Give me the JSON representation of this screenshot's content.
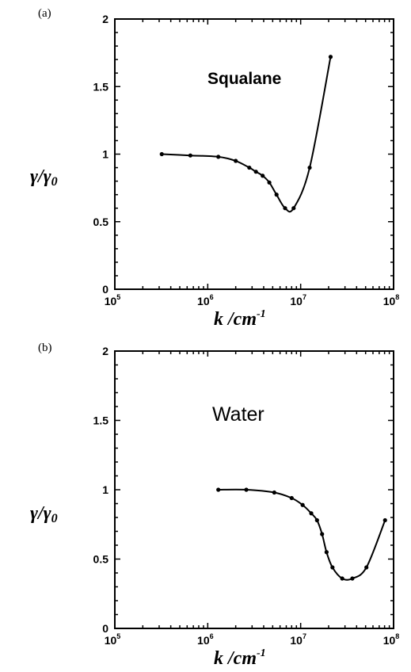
{
  "chart_data": [
    {
      "type": "line",
      "panel_label": "(a)",
      "title": "Squalane",
      "xlabel": "k /cm",
      "xlabel_exponent": "-1",
      "ylabel": "γ/γ",
      "ylabel_subscript": "0",
      "xscale": "log",
      "xlim": [
        100000,
        100000000
      ],
      "ylim": [
        0,
        2
      ],
      "yticks": [
        "0",
        "0.5",
        "1",
        "1.5",
        "2"
      ],
      "xticks": [
        {
          "base": "10",
          "exp": "5"
        },
        {
          "base": "10",
          "exp": "6"
        },
        {
          "base": "10",
          "exp": "7"
        },
        {
          "base": "10",
          "exp": "8"
        }
      ],
      "grid": false,
      "series": [
        {
          "x": [
            320000,
            650000,
            1300000,
            2000000,
            2800000,
            3300000,
            3900000,
            4600000,
            5500000,
            6800000,
            8400000,
            12500000,
            21000000
          ],
          "y": [
            1.0,
            0.99,
            0.98,
            0.95,
            0.9,
            0.87,
            0.84,
            0.79,
            0.7,
            0.6,
            0.6,
            0.9,
            1.72
          ]
        }
      ]
    },
    {
      "type": "line",
      "panel_label": "(b)",
      "title": "Water",
      "xlabel": "k /cm",
      "xlabel_exponent": "-1",
      "ylabel": "γ/γ",
      "ylabel_subscript": "0",
      "xscale": "log",
      "xlim": [
        100000,
        100000000
      ],
      "ylim": [
        0,
        2
      ],
      "yticks": [
        "0",
        "0.5",
        "1",
        "1.5",
        "2"
      ],
      "xticks": [
        {
          "base": "10",
          "exp": "5"
        },
        {
          "base": "10",
          "exp": "6"
        },
        {
          "base": "10",
          "exp": "7"
        },
        {
          "base": "10",
          "exp": "8"
        }
      ],
      "grid": false,
      "series": [
        {
          "x": [
            1300000,
            2600000,
            5200000,
            8000000,
            10500000,
            13000000,
            15000000,
            17000000,
            19000000,
            22000000,
            28000000,
            36000000,
            51000000,
            81000000
          ],
          "y": [
            1.0,
            1.0,
            0.98,
            0.94,
            0.89,
            0.83,
            0.78,
            0.68,
            0.55,
            0.44,
            0.36,
            0.36,
            0.44,
            0.78
          ]
        }
      ]
    }
  ]
}
